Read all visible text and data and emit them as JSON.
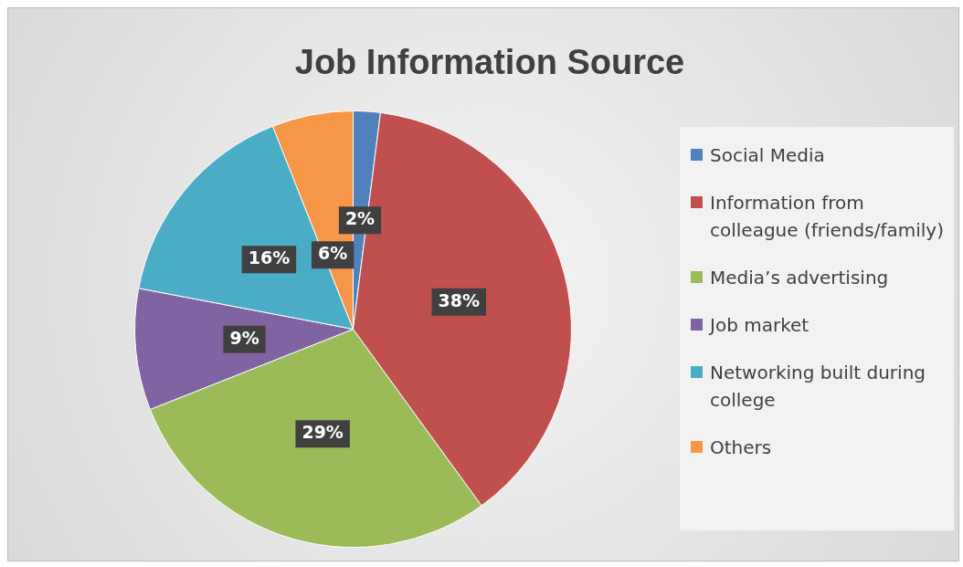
{
  "chart_data": {
    "type": "pie",
    "title": "Job Information Source",
    "categories": [
      "Social Media",
      "Information from colleague (friends/family)",
      "Media’s advertising",
      "Job market",
      "Networking built during college",
      "Others"
    ],
    "values": [
      2,
      38,
      29,
      9,
      16,
      6
    ],
    "value_labels": [
      "2%",
      "38%",
      "29%",
      "9%",
      "16%",
      "6%"
    ],
    "colors": [
      "#4f81bd",
      "#c0504d",
      "#9bbb59",
      "#8064a2",
      "#4bacc6",
      "#f79646"
    ],
    "legend": "right"
  }
}
